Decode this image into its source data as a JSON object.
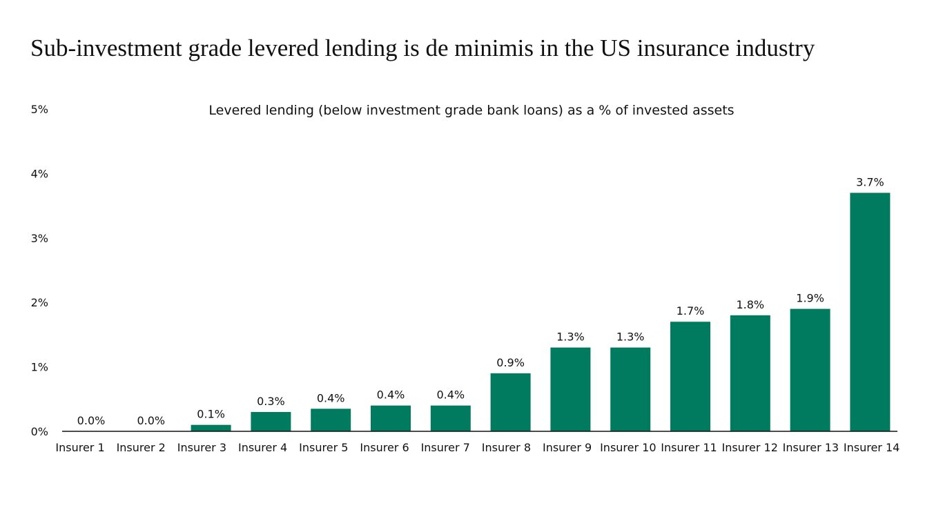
{
  "chart_data": {
    "type": "bar",
    "title": "Sub-investment grade levered lending is de minimis in the US insurance industry",
    "subtitle": "Levered lending (below investment grade bank loans) as a % of invested assets",
    "xlabel": "",
    "ylabel": "",
    "categories": [
      "Insurer 1",
      "Insurer 2",
      "Insurer 3",
      "Insurer 4",
      "Insurer 5",
      "Insurer 6",
      "Insurer 7",
      "Insurer 8",
      "Insurer 9",
      "Insurer 10",
      "Insurer 11",
      "Insurer 12",
      "Insurer 13",
      "Insurer 14"
    ],
    "values": [
      0.0,
      0.0,
      0.1,
      0.3,
      0.35,
      0.4,
      0.4,
      0.9,
      1.3,
      1.3,
      1.7,
      1.8,
      1.9,
      3.7
    ],
    "data_labels": [
      "0.0%",
      "0.0%",
      "0.1%",
      "0.3%",
      "0.4%",
      "0.4%",
      "0.4%",
      "0.9%",
      "1.3%",
      "1.3%",
      "1.7%",
      "1.8%",
      "1.9%",
      "3.7%"
    ],
    "ylim": [
      0,
      5
    ],
    "yticks": [
      0,
      1,
      2,
      3,
      4,
      5
    ],
    "ytick_labels": [
      "0%",
      "1%",
      "2%",
      "3%",
      "4%",
      "5%"
    ],
    "grid": false,
    "legend": "none",
    "bar_color": "#007b5f"
  }
}
